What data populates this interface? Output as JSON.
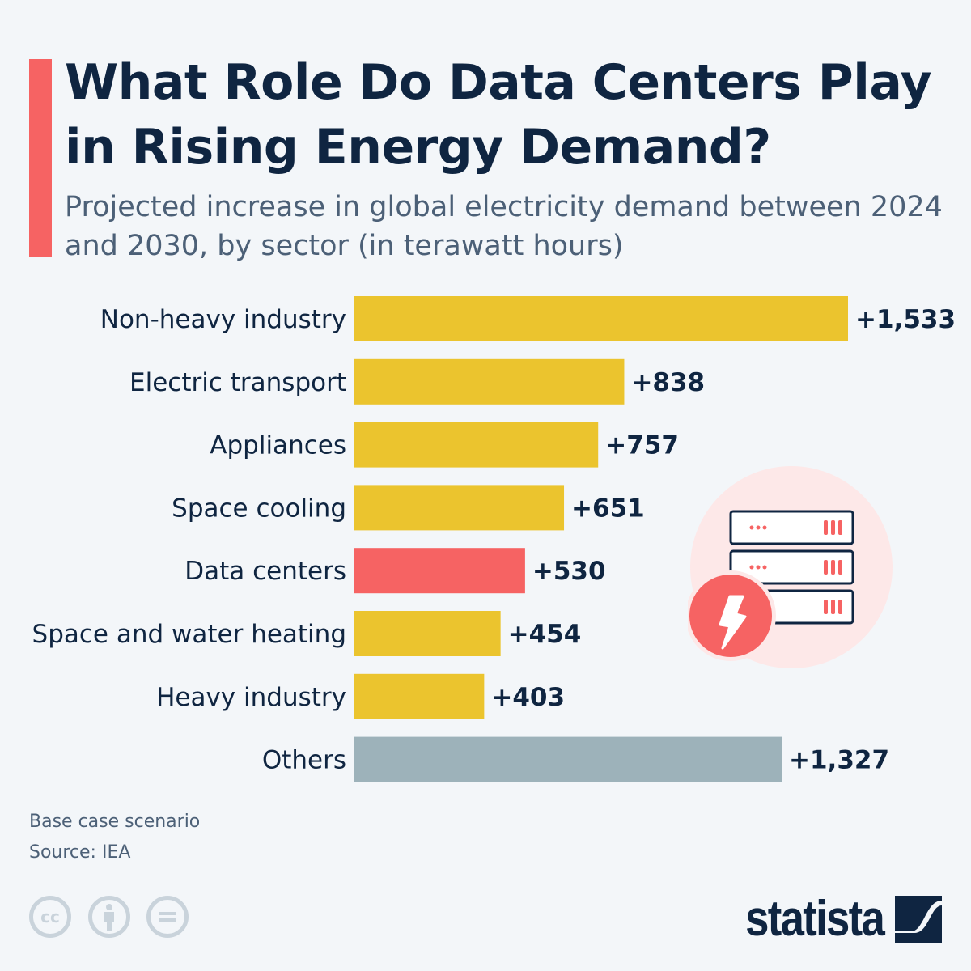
{
  "header": {
    "title": "What Role Do Data Centers Play in Rising Energy Demand?",
    "subtitle": "Projected increase in global electricity demand between 2024 and 2030, by sector (in terawatt hours)"
  },
  "chart_data": {
    "type": "bar",
    "orientation": "horizontal",
    "categories": [
      "Non-heavy industry",
      "Electric transport",
      "Appliances",
      "Space cooling",
      "Data centers",
      "Space and water heating",
      "Heavy industry",
      "Others"
    ],
    "values": [
      1533,
      838,
      757,
      651,
      530,
      454,
      403,
      1327
    ],
    "labels": [
      "+1,533",
      "+838",
      "+757",
      "+651",
      "+530",
      "+454",
      "+403",
      "+1,327"
    ],
    "colors": [
      "#ebc42e",
      "#ebc42e",
      "#ebc42e",
      "#ebc42e",
      "#f66363",
      "#ebc42e",
      "#ebc42e",
      "#9db2ba"
    ],
    "xlim": [
      0,
      1533
    ],
    "grid": false
  },
  "footer": {
    "note": "Base case scenario",
    "source": "Source: IEA",
    "cc": "cc",
    "brand": "statista"
  },
  "icons": [
    "server-rack-icon",
    "lightning-bolt-icon",
    "creative-commons-icon",
    "attribution-icon",
    "no-derivatives-icon",
    "statista-logo"
  ]
}
